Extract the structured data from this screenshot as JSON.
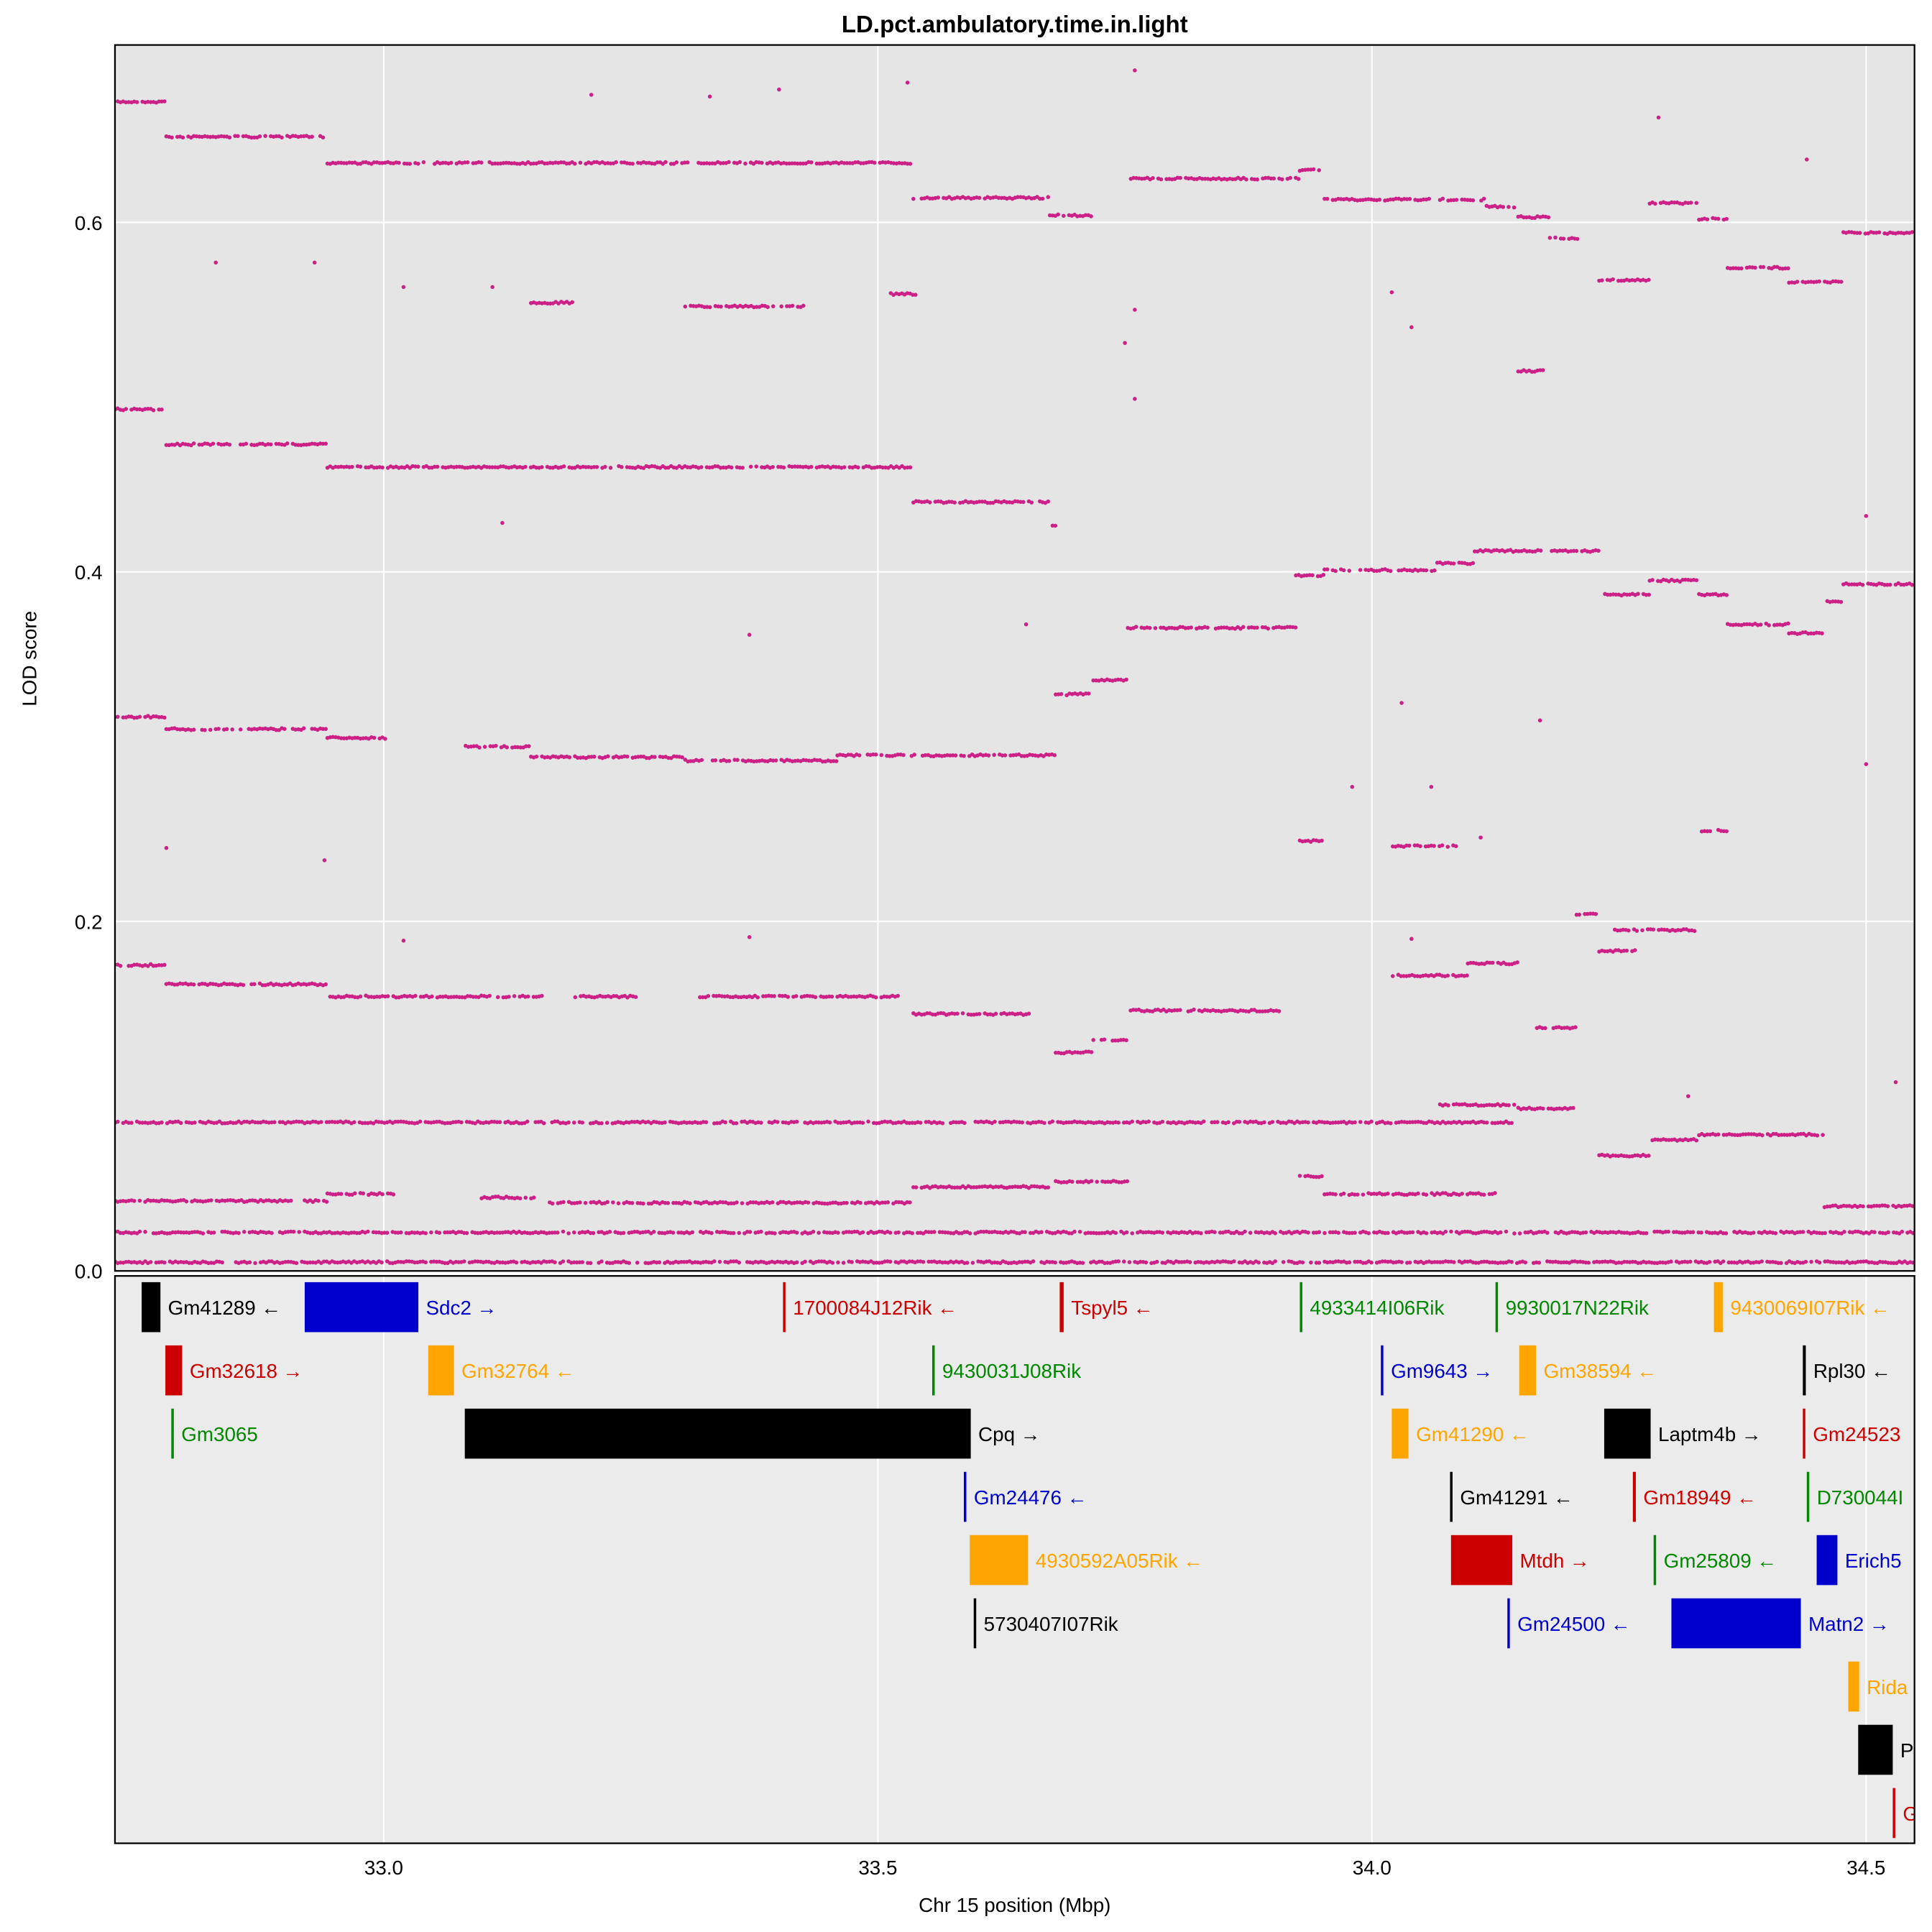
{
  "chart_data": {
    "type": "scatter",
    "title": "LD.pct.ambulatory.time.in.light",
    "xlabel": "Chr 15 position (Mbp)",
    "ylabel": "LOD score",
    "xlim": [
      32.728,
      34.549
    ],
    "ylim": [
      0,
      0.7015
    ],
    "xticks": [
      33.0,
      33.5,
      34.0,
      34.5
    ],
    "xtick_labels": [
      "33.0",
      "33.5",
      "34.0",
      "34.5"
    ],
    "yticks": [
      0,
      0.2,
      0.4,
      0.6
    ],
    "ytick_labels": [
      "0.0",
      "0.2",
      "0.4",
      "0.6"
    ],
    "grid": true,
    "point_color": "#CC2288",
    "panel_background": "#E5E5E5",
    "gene_panel_background": "#EBEBEB",
    "lod_bands": [
      [
        32.728,
        32.78,
        0.669
      ],
      [
        32.78,
        32.943,
        0.649
      ],
      [
        32.943,
        33.535,
        0.634
      ],
      [
        33.536,
        33.674,
        0.614
      ],
      [
        33.674,
        33.716,
        0.604
      ],
      [
        33.756,
        33.927,
        0.625
      ],
      [
        33.927,
        33.948,
        0.63
      ],
      [
        33.952,
        34.116,
        0.613
      ],
      [
        34.116,
        34.148,
        0.609
      ],
      [
        34.148,
        34.18,
        0.603
      ],
      [
        34.18,
        34.211,
        0.591
      ],
      [
        34.23,
        34.281,
        0.567
      ],
      [
        34.281,
        34.331,
        0.611
      ],
      [
        34.331,
        34.36,
        0.602
      ],
      [
        34.36,
        34.422,
        0.574
      ],
      [
        34.422,
        34.477,
        0.566
      ],
      [
        34.477,
        34.549,
        0.594
      ],
      [
        33.149,
        33.191,
        0.554
      ],
      [
        33.305,
        33.427,
        0.552
      ],
      [
        33.513,
        33.541,
        0.559
      ],
      [
        32.728,
        32.78,
        0.493
      ],
      [
        34.148,
        34.176,
        0.515
      ],
      [
        32.78,
        32.943,
        0.473
      ],
      [
        32.943,
        33.535,
        0.46
      ],
      [
        33.536,
        33.674,
        0.44
      ],
      [
        33.674,
        33.684,
        0.426
      ],
      [
        33.923,
        33.952,
        0.398
      ],
      [
        33.952,
        34.066,
        0.401
      ],
      [
        34.066,
        34.104,
        0.405
      ],
      [
        34.104,
        34.233,
        0.412
      ],
      [
        34.233,
        34.281,
        0.387
      ],
      [
        34.281,
        34.331,
        0.395
      ],
      [
        34.331,
        34.36,
        0.387
      ],
      [
        34.36,
        34.422,
        0.37
      ],
      [
        34.422,
        34.458,
        0.365
      ],
      [
        34.458,
        34.477,
        0.383
      ],
      [
        34.477,
        34.549,
        0.393
      ],
      [
        33.753,
        33.927,
        0.368
      ],
      [
        33.68,
        33.718,
        0.33
      ],
      [
        33.718,
        33.753,
        0.338
      ],
      [
        32.728,
        32.78,
        0.317
      ],
      [
        32.78,
        32.943,
        0.31
      ],
      [
        32.943,
        33.004,
        0.305
      ],
      [
        33.08,
        33.149,
        0.3
      ],
      [
        33.149,
        33.305,
        0.294
      ],
      [
        33.305,
        33.459,
        0.292
      ],
      [
        33.459,
        33.68,
        0.295
      ],
      [
        33.927,
        33.952,
        0.246
      ],
      [
        34.021,
        34.085,
        0.243
      ],
      [
        34.331,
        34.36,
        0.252
      ],
      [
        32.728,
        32.78,
        0.175
      ],
      [
        32.78,
        32.943,
        0.164
      ],
      [
        32.943,
        33.162,
        0.157
      ],
      [
        33.191,
        33.257,
        0.157
      ],
      [
        33.32,
        33.522,
        0.157
      ],
      [
        33.536,
        33.655,
        0.147
      ],
      [
        33.68,
        33.718,
        0.125
      ],
      [
        33.718,
        33.753,
        0.132
      ],
      [
        33.753,
        33.914,
        0.149
      ],
      [
        34.243,
        34.331,
        0.195
      ],
      [
        34.207,
        34.23,
        0.204
      ],
      [
        34.23,
        34.268,
        0.183
      ],
      [
        34.167,
        34.207,
        0.139
      ],
      [
        34.097,
        34.148,
        0.176
      ],
      [
        34.021,
        34.097,
        0.169
      ],
      [
        32.728,
        34.142,
        0.085
      ],
      [
        34.066,
        34.148,
        0.095
      ],
      [
        34.148,
        34.205,
        0.093
      ],
      [
        34.23,
        34.281,
        0.066
      ],
      [
        34.281,
        34.331,
        0.075
      ],
      [
        34.331,
        34.458,
        0.078
      ],
      [
        32.728,
        32.943,
        0.04
      ],
      [
        32.943,
        33.01,
        0.044
      ],
      [
        33.099,
        33.156,
        0.042
      ],
      [
        33.168,
        33.535,
        0.039
      ],
      [
        33.536,
        33.674,
        0.048
      ],
      [
        33.68,
        33.753,
        0.051
      ],
      [
        33.927,
        33.952,
        0.054
      ],
      [
        33.952,
        34.129,
        0.044
      ],
      [
        34.458,
        34.549,
        0.037
      ],
      [
        32.728,
        34.549,
        0.022
      ],
      [
        32.728,
        34.549,
        0.005
      ]
    ],
    "scatter_points": [
      [
        33.21,
        0.673
      ],
      [
        33.53,
        0.68
      ],
      [
        33.76,
        0.687
      ],
      [
        33.33,
        0.672
      ],
      [
        33.4,
        0.676
      ],
      [
        34.29,
        0.66
      ],
      [
        34.44,
        0.636
      ],
      [
        32.83,
        0.577
      ],
      [
        32.93,
        0.577
      ],
      [
        33.02,
        0.563
      ],
      [
        33.11,
        0.563
      ],
      [
        33.76,
        0.55
      ],
      [
        34.02,
        0.56
      ],
      [
        34.04,
        0.54
      ],
      [
        33.75,
        0.531
      ],
      [
        33.76,
        0.499
      ],
      [
        33.12,
        0.428
      ],
      [
        33.37,
        0.364
      ],
      [
        33.65,
        0.37
      ],
      [
        34.03,
        0.325
      ],
      [
        34.17,
        0.315
      ],
      [
        33.98,
        0.277
      ],
      [
        34.06,
        0.277
      ],
      [
        32.78,
        0.242
      ],
      [
        32.94,
        0.235
      ],
      [
        34.11,
        0.248
      ],
      [
        34.5,
        0.29
      ],
      [
        34.5,
        0.432
      ],
      [
        33.37,
        0.191
      ],
      [
        33.02,
        0.189
      ],
      [
        34.04,
        0.19
      ],
      [
        34.32,
        0.1
      ],
      [
        34.53,
        0.108
      ]
    ]
  },
  "genes": [
    {
      "label": "Gm41289",
      "start": 32.755,
      "end": 32.774,
      "row": 1,
      "strand": "←",
      "color": "#000000"
    },
    {
      "label": "Sdc2",
      "start": 32.92,
      "end": 33.035,
      "row": 1,
      "strand": "→",
      "color": "#0000CC"
    },
    {
      "label": "1700084J12Rik",
      "start": 33.404,
      "end": 33.406,
      "row": 1,
      "strand": "←",
      "color": "#CC0000"
    },
    {
      "label": "Tspyl5",
      "start": 33.684,
      "end": 33.688,
      "row": 1,
      "strand": "←",
      "color": "#CC0000"
    },
    {
      "label": "4933414I06Rik",
      "start": 33.927,
      "end": 33.929,
      "row": 1,
      "strand": "",
      "color": "#008800"
    },
    {
      "label": "9930017N22Rik",
      "start": 34.125,
      "end": 34.127,
      "row": 1,
      "strand": "",
      "color": "#008800"
    },
    {
      "label": "9430069I07Rik",
      "start": 34.346,
      "end": 34.355,
      "row": 1,
      "strand": "←",
      "color": "#FFA500"
    },
    {
      "label": "Gm32618",
      "start": 32.779,
      "end": 32.796,
      "row": 2,
      "strand": "→",
      "color": "#CC0000"
    },
    {
      "label": "Gm32764",
      "start": 33.045,
      "end": 33.071,
      "row": 2,
      "strand": "←",
      "color": "#FFA500"
    },
    {
      "label": "9430031J08Rik",
      "start": 33.555,
      "end": 33.557,
      "row": 2,
      "strand": "",
      "color": "#008800"
    },
    {
      "label": "Gm9643",
      "start": 34.009,
      "end": 34.011,
      "row": 2,
      "strand": "→",
      "color": "#0000CC"
    },
    {
      "label": "Gm38594",
      "start": 34.149,
      "end": 34.166,
      "row": 2,
      "strand": "←",
      "color": "#FFA500"
    },
    {
      "label": "Rpl30",
      "start": 34.436,
      "end": 34.439,
      "row": 2,
      "strand": "←",
      "color": "#000000"
    },
    {
      "label": "Gm3065",
      "start": 32.785,
      "end": 32.787,
      "row": 3,
      "strand": "",
      "color": "#008800"
    },
    {
      "label": "Cpq",
      "start": 33.082,
      "end": 33.594,
      "row": 3,
      "strand": "→",
      "color": "#000000"
    },
    {
      "label": "Gm41290",
      "start": 34.02,
      "end": 34.037,
      "row": 3,
      "strand": "←",
      "color": "#FFA500"
    },
    {
      "label": "Laptm4b",
      "start": 34.235,
      "end": 34.282,
      "row": 3,
      "strand": "→",
      "color": "#000000"
    },
    {
      "label": "Gm24523",
      "start": 34.436,
      "end": 34.438,
      "row": 3,
      "strand": "",
      "color": "#CC0000"
    },
    {
      "label": "Gm24476",
      "start": 33.587,
      "end": 33.589,
      "row": 4,
      "strand": "←",
      "color": "#0000CC"
    },
    {
      "label": "Gm41291",
      "start": 34.079,
      "end": 34.081,
      "row": 4,
      "strand": "←",
      "color": "#000000"
    },
    {
      "label": "Gm18949",
      "start": 34.264,
      "end": 34.267,
      "row": 4,
      "strand": "←",
      "color": "#CC0000"
    },
    {
      "label": "D730044I",
      "start": 34.44,
      "end": 34.442,
      "row": 4,
      "strand": "",
      "color": "#008800"
    },
    {
      "label": "4930592A05Rik",
      "start": 33.593,
      "end": 33.652,
      "row": 5,
      "strand": "←",
      "color": "#FFA500"
    },
    {
      "label": "Mtdh",
      "start": 34.08,
      "end": 34.142,
      "row": 5,
      "strand": "→",
      "color": "#CC0000"
    },
    {
      "label": "Gm25809",
      "start": 34.285,
      "end": 34.287,
      "row": 5,
      "strand": "←",
      "color": "#008800"
    },
    {
      "label": "Erich5",
      "start": 34.45,
      "end": 34.471,
      "row": 5,
      "strand": "",
      "color": "#0000CC"
    },
    {
      "label": "5730407I07Rik",
      "start": 33.597,
      "end": 33.599,
      "row": 6,
      "strand": "",
      "color": "#000000"
    },
    {
      "label": "Gm24500",
      "start": 34.137,
      "end": 34.139,
      "row": 6,
      "strand": "←",
      "color": "#0000CC"
    },
    {
      "label": "Matn2",
      "start": 34.303,
      "end": 34.434,
      "row": 6,
      "strand": "→",
      "color": "#0000CC"
    },
    {
      "label": "Rida",
      "start": 34.482,
      "end": 34.493,
      "row": 7,
      "strand": "",
      "color": "#FFA500"
    },
    {
      "label": "P",
      "start": 34.492,
      "end": 34.527,
      "row": 8,
      "strand": "",
      "color": "#000000"
    },
    {
      "label": "G",
      "start": 34.527,
      "end": 34.529,
      "row": 9,
      "strand": "",
      "color": "#CC0000"
    }
  ]
}
